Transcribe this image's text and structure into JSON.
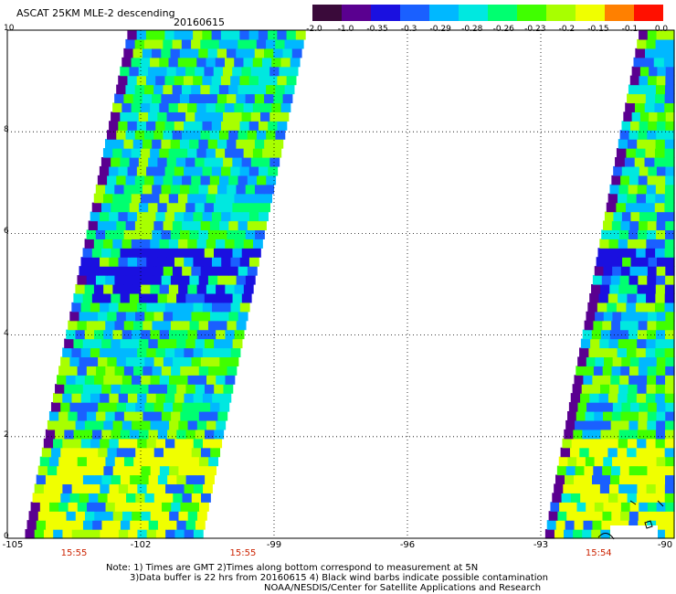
{
  "title": "ASCAT 25KM MLE-2 descending",
  "date": "20160615",
  "colorbar": {
    "labels": [
      "-2.0",
      "-1.0",
      "-0.35",
      "-0.3",
      "-0.29",
      "-0.28",
      "-0.26",
      "-0.23",
      "-0.2",
      "-0.15",
      "-0.1",
      "0.0"
    ],
    "colors": [
      "#3a0a3a",
      "#5a0090",
      "#1a10e0",
      "#1a60ff",
      "#00b8ff",
      "#00e8e0",
      "#00ff70",
      "#40ff00",
      "#a8ff00",
      "#f0ff00",
      "#ff8000",
      "#ff1000"
    ]
  },
  "axes": {
    "x_ticks": [
      "-105",
      "-102",
      "-99",
      "-96",
      "-93",
      "-90"
    ],
    "y_ticks": [
      "0",
      "2",
      "4",
      "6",
      "8",
      "10"
    ],
    "xlim": [
      -105,
      -90
    ],
    "ylim": [
      0,
      10
    ]
  },
  "times": [
    {
      "label": "15:55",
      "lon": -103.5
    },
    {
      "label": "15:55",
      "lon": -99.7
    },
    {
      "label": "15:54",
      "lon": -91.7
    }
  ],
  "notes": {
    "line1": "Note: 1) Times are GMT 2)Times along bottom correspond to measurement at 5N",
    "line2": "3)Data buffer is 22 hrs from 20160615 4) Black wind barbs indicate possible contamination",
    "line3": "NOAA/NESDIS/Center for Satellite Applications and Research"
  },
  "swaths": [
    {
      "name": "swath-west",
      "bottom_lon": [
        -104.6,
        -100.6
      ],
      "top_lon": [
        -102.3,
        -98.3
      ]
    },
    {
      "name": "swath-east",
      "bottom_lon": [
        -92.9,
        -90.0
      ],
      "top_lon": [
        -90.8,
        -90.0
      ]
    }
  ]
}
